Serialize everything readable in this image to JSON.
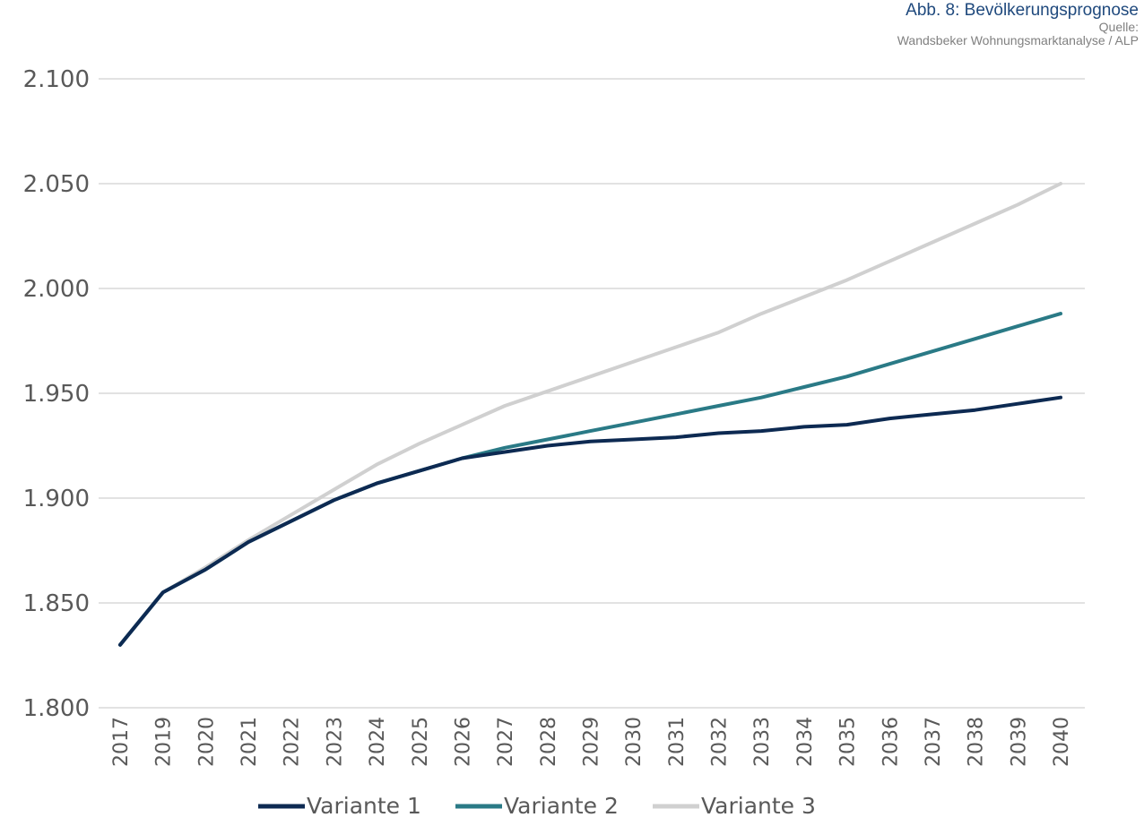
{
  "header": {
    "title": "Abb. 8: Bevölkerungsprognose",
    "source_label": "Quelle:",
    "source_text": "Wandsbeker Wohnungsmarktanalyse / ALP"
  },
  "chart_data": {
    "type": "line",
    "title": "Abb. 8: Bevölkerungsprognose",
    "xlabel": "",
    "ylabel": "",
    "categories": [
      "2017",
      "2019",
      "2020",
      "2021",
      "2022",
      "2023",
      "2024",
      "2025",
      "2026",
      "2027",
      "2028",
      "2029",
      "2030",
      "2031",
      "2032",
      "2033",
      "2034",
      "2035",
      "2036",
      "2037",
      "2038",
      "2039",
      "2040"
    ],
    "ylim": [
      1800,
      2100
    ],
    "yticks": [
      1800,
      1850,
      1900,
      1950,
      2000,
      2050,
      2100
    ],
    "ytick_labels": [
      "1.800",
      "1.850",
      "1.900",
      "1.950",
      "2.000",
      "2.050",
      "2.100"
    ],
    "grid": true,
    "legend_position": "bottom",
    "series": [
      {
        "name": "Variante 3",
        "color": "#d0d0d0",
        "values": [
          1830,
          1855,
          1867,
          1880,
          1892,
          1904,
          1916,
          1926,
          1935,
          1944,
          1951,
          1958,
          1965,
          1972,
          1979,
          1988,
          1996,
          2004,
          2013,
          2022,
          2031,
          2040,
          2050
        ]
      },
      {
        "name": "Variante 2",
        "color": "#2a7a86",
        "values": [
          1830,
          1855,
          1866,
          1879,
          1889,
          1899,
          1907,
          1913,
          1919,
          1924,
          1928,
          1932,
          1936,
          1940,
          1944,
          1948,
          1953,
          1958,
          1964,
          1970,
          1976,
          1982,
          1988
        ]
      },
      {
        "name": "Variante 1",
        "color": "#0d2a52",
        "values": [
          1830,
          1855,
          1866,
          1879,
          1889,
          1899,
          1907,
          1913,
          1919,
          1922,
          1925,
          1927,
          1928,
          1929,
          1931,
          1932,
          1934,
          1935,
          1938,
          1940,
          1942,
          1945,
          1948
        ]
      }
    ],
    "legend_order": [
      "Variante 1",
      "Variante 2",
      "Variante 3"
    ]
  }
}
